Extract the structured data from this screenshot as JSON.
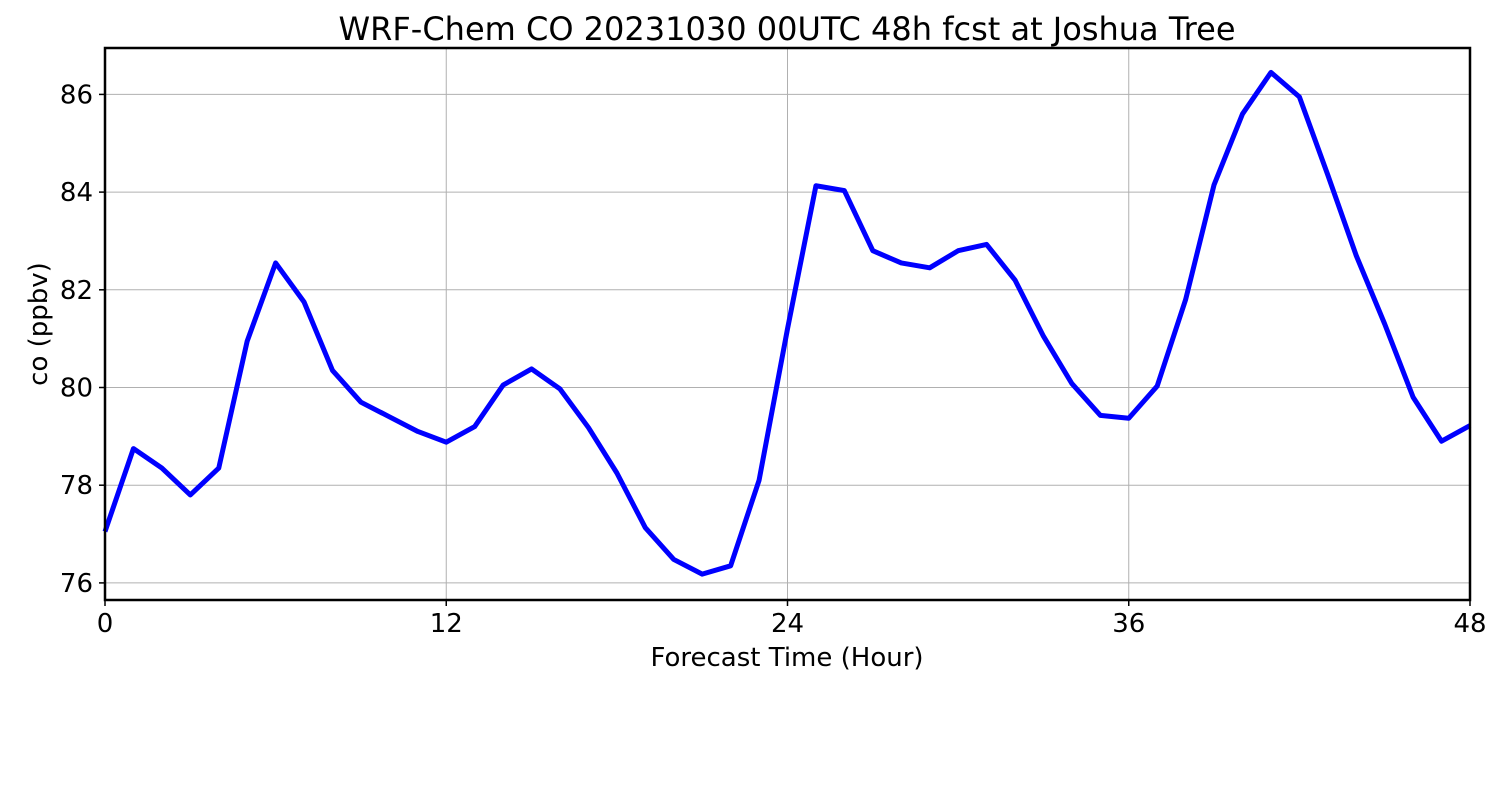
{
  "chart_data": {
    "type": "line",
    "title": "WRF-Chem CO  20231030 00UTC 48h fcst at Joshua Tree",
    "xlabel": "Forecast Time (Hour)",
    "ylabel": "co  (ppbv)",
    "xlim": [
      0,
      48
    ],
    "ylim": [
      75.65,
      86.95
    ],
    "x_ticks": [
      0,
      12,
      24,
      36,
      48
    ],
    "y_ticks": [
      76,
      78,
      80,
      82,
      84,
      86
    ],
    "grid": true,
    "legend": "none",
    "series": [
      {
        "color": "#0000ff",
        "x": [
          0,
          1,
          2,
          3,
          4,
          5,
          6,
          7,
          8,
          9,
          10,
          11,
          12,
          13,
          14,
          15,
          16,
          17,
          18,
          19,
          20,
          21,
          22,
          23,
          24,
          25,
          26,
          27,
          28,
          29,
          30,
          31,
          32,
          33,
          34,
          35,
          36,
          37,
          38,
          39,
          40,
          41,
          42,
          43,
          44,
          45,
          46,
          47,
          48
        ],
        "values": [
          77.05,
          78.75,
          78.35,
          77.8,
          78.35,
          80.95,
          82.55,
          81.75,
          80.35,
          79.7,
          79.4,
          79.1,
          78.88,
          79.2,
          80.05,
          80.38,
          79.97,
          79.18,
          78.25,
          77.13,
          76.48,
          76.18,
          76.35,
          78.1,
          81.2,
          84.13,
          84.03,
          82.8,
          82.55,
          82.45,
          82.8,
          82.93,
          82.2,
          81.05,
          80.08,
          79.43,
          79.37,
          80.03,
          81.8,
          84.15,
          85.6,
          86.45,
          85.95,
          84.35,
          82.7,
          81.3,
          79.8,
          78.9,
          79.22
        ]
      }
    ]
  }
}
